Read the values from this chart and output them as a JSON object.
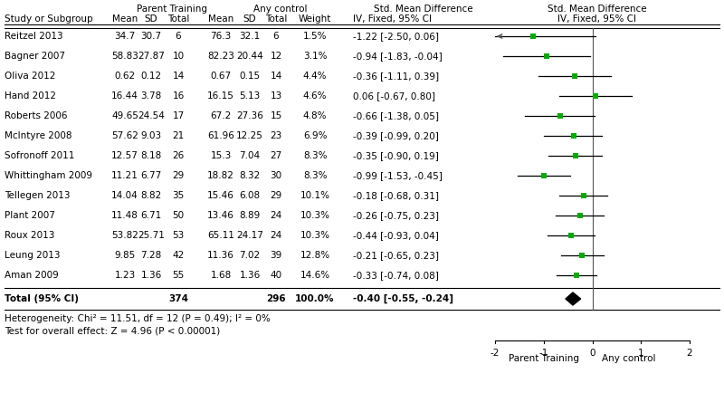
{
  "studies": [
    {
      "name": "Reitzel 2013",
      "pt_mean": "34.7",
      "pt_sd": "30.7",
      "pt_n": "6",
      "ac_mean": "76.3",
      "ac_sd": "32.1",
      "ac_n": "6",
      "weight": "1.5%",
      "smd": -1.22,
      "ci_lo": -2.5,
      "ci_hi": 0.06,
      "ci_str": "-1.22 [-2.50, 0.06]"
    },
    {
      "name": "Bagner 2007",
      "pt_mean": "58.83",
      "pt_sd": "27.87",
      "pt_n": "10",
      "ac_mean": "82.23",
      "ac_sd": "20.44",
      "ac_n": "12",
      "weight": "3.1%",
      "smd": -0.94,
      "ci_lo": -1.83,
      "ci_hi": -0.04,
      "ci_str": "-0.94 [-1.83, -0.04]"
    },
    {
      "name": "Oliva 2012",
      "pt_mean": "0.62",
      "pt_sd": "0.12",
      "pt_n": "14",
      "ac_mean": "0.67",
      "ac_sd": "0.15",
      "ac_n": "14",
      "weight": "4.4%",
      "smd": -0.36,
      "ci_lo": -1.11,
      "ci_hi": 0.39,
      "ci_str": "-0.36 [-1.11, 0.39]"
    },
    {
      "name": "Hand 2012",
      "pt_mean": "16.44",
      "pt_sd": "3.78",
      "pt_n": "16",
      "ac_mean": "16.15",
      "ac_sd": "5.13",
      "ac_n": "13",
      "weight": "4.6%",
      "smd": 0.06,
      "ci_lo": -0.67,
      "ci_hi": 0.8,
      "ci_str": "0.06 [-0.67, 0.80]"
    },
    {
      "name": "Roberts 2006",
      "pt_mean": "49.65",
      "pt_sd": "24.54",
      "pt_n": "17",
      "ac_mean": "67.2",
      "ac_sd": "27.36",
      "ac_n": "15",
      "weight": "4.8%",
      "smd": -0.66,
      "ci_lo": -1.38,
      "ci_hi": 0.05,
      "ci_str": "-0.66 [-1.38, 0.05]"
    },
    {
      "name": "McIntyre 2008",
      "pt_mean": "57.62",
      "pt_sd": "9.03",
      "pt_n": "21",
      "ac_mean": "61.96",
      "ac_sd": "12.25",
      "ac_n": "23",
      "weight": "6.9%",
      "smd": -0.39,
      "ci_lo": -0.99,
      "ci_hi": 0.2,
      "ci_str": "-0.39 [-0.99, 0.20]"
    },
    {
      "name": "Sofronoff 2011",
      "pt_mean": "12.57",
      "pt_sd": "8.18",
      "pt_n": "26",
      "ac_mean": "15.3",
      "ac_sd": "7.04",
      "ac_n": "27",
      "weight": "8.3%",
      "smd": -0.35,
      "ci_lo": -0.9,
      "ci_hi": 0.19,
      "ci_str": "-0.35 [-0.90, 0.19]"
    },
    {
      "name": "Whittingham 2009",
      "pt_mean": "11.21",
      "pt_sd": "6.77",
      "pt_n": "29",
      "ac_mean": "18.82",
      "ac_sd": "8.32",
      "ac_n": "30",
      "weight": "8.3%",
      "smd": -0.99,
      "ci_lo": -1.53,
      "ci_hi": -0.45,
      "ci_str": "-0.99 [-1.53, -0.45]"
    },
    {
      "name": "Tellegen 2013",
      "pt_mean": "14.04",
      "pt_sd": "8.82",
      "pt_n": "35",
      "ac_mean": "15.46",
      "ac_sd": "6.08",
      "ac_n": "29",
      "weight": "10.1%",
      "smd": -0.18,
      "ci_lo": -0.68,
      "ci_hi": 0.31,
      "ci_str": "-0.18 [-0.68, 0.31]"
    },
    {
      "name": "Plant 2007",
      "pt_mean": "11.48",
      "pt_sd": "6.71",
      "pt_n": "50",
      "ac_mean": "13.46",
      "ac_sd": "8.89",
      "ac_n": "24",
      "weight": "10.3%",
      "smd": -0.26,
      "ci_lo": -0.75,
      "ci_hi": 0.23,
      "ci_str": "-0.26 [-0.75, 0.23]"
    },
    {
      "name": "Roux 2013",
      "pt_mean": "53.82",
      "pt_sd": "25.71",
      "pt_n": "53",
      "ac_mean": "65.11",
      "ac_sd": "24.17",
      "ac_n": "24",
      "weight": "10.3%",
      "smd": -0.44,
      "ci_lo": -0.93,
      "ci_hi": 0.04,
      "ci_str": "-0.44 [-0.93, 0.04]"
    },
    {
      "name": "Leung 2013",
      "pt_mean": "9.85",
      "pt_sd": "7.28",
      "pt_n": "42",
      "ac_mean": "11.36",
      "ac_sd": "7.02",
      "ac_n": "39",
      "weight": "12.8%",
      "smd": -0.21,
      "ci_lo": -0.65,
      "ci_hi": 0.23,
      "ci_str": "-0.21 [-0.65, 0.23]"
    },
    {
      "name": "Aman 2009",
      "pt_mean": "1.23",
      "pt_sd": "1.36",
      "pt_n": "55",
      "ac_mean": "1.68",
      "ac_sd": "1.36",
      "ac_n": "40",
      "weight": "14.6%",
      "smd": -0.33,
      "ci_lo": -0.74,
      "ci_hi": 0.08,
      "ci_str": "-0.33 [-0.74, 0.08]"
    }
  ],
  "total": {
    "pt_n": "374",
    "ac_n": "296",
    "weight": "100.0%",
    "smd": -0.4,
    "ci_lo": -0.55,
    "ci_hi": -0.24,
    "ci_str": "-0.40 [-0.55, -0.24]"
  },
  "heterogeneity_text": "Heterogeneity: Chi² = 11.51, df = 12 (P = 0.49); I² = 0%",
  "overall_effect_text": "Test for overall effect: Z = 4.96 (P < 0.00001)",
  "xmin": -2,
  "xmax": 2,
  "plot_color": "#00aa00",
  "diamond_color": "#000000",
  "ci_line_color": "#000000",
  "arrow_color": "#555555"
}
